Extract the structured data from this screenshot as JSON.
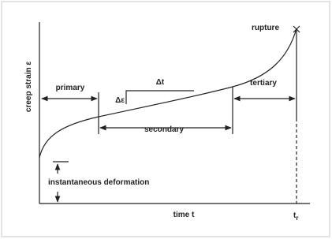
{
  "y_axis_label": "creep strain ε",
  "x_axis_label": "time t",
  "rupture": "rupture",
  "phases": {
    "primary": "primary",
    "secondary": "secondary",
    "tertiary": "tertiary"
  },
  "delta_strain": "Δε",
  "delta_time": "Δt",
  "instantaneous": "instantaneous deformation",
  "rupture_time": {
    "base": "t",
    "sub": "r"
  }
}
